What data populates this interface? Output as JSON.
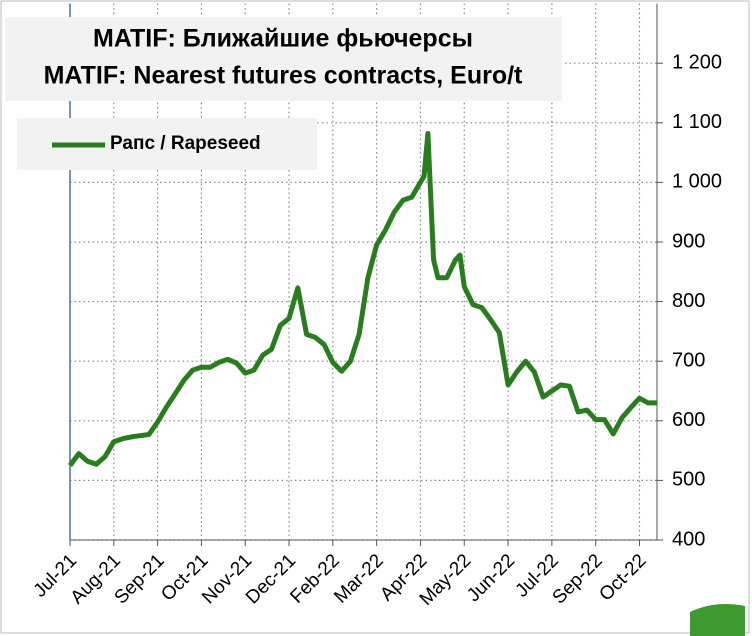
{
  "chart_data": {
    "type": "line",
    "title": [
      "MATIF: Ближайшие фьючерсы",
      "MATIF: Nearest futures contracts, Euro/t"
    ],
    "x": [
      0,
      0.2,
      0.4,
      0.6,
      0.8,
      1.0,
      1.2,
      1.4,
      1.6,
      1.8,
      2.0,
      2.2,
      2.4,
      2.6,
      2.8,
      3.0,
      3.2,
      3.4,
      3.6,
      3.8,
      4.0,
      4.2,
      4.4,
      4.6,
      4.8,
      5.0,
      5.2,
      5.4,
      5.6,
      5.8,
      6.0,
      6.2,
      6.4,
      6.6,
      6.8,
      7.0,
      7.2,
      7.4,
      7.6,
      7.8,
      8.0,
      8.08,
      8.17,
      8.3,
      8.4,
      8.6,
      8.8,
      8.9,
      9.0,
      9.2,
      9.4,
      9.6,
      9.8,
      10.0,
      10.2,
      10.4,
      10.6,
      10.8,
      11.0,
      11.2,
      11.4,
      11.6,
      11.8,
      12.0,
      12.2,
      12.4,
      12.6,
      12.8,
      13.0,
      13.2,
      13.4
    ],
    "series": [
      {
        "name": "Рапс / Rapeseed",
        "color": "#2a7d1f",
        "values": [
          525,
          545,
          532,
          527,
          540,
          565,
          570,
          573,
          575,
          577,
          598,
          623,
          645,
          668,
          685,
          690,
          690,
          698,
          703,
          697,
          680,
          685,
          710,
          720,
          760,
          772,
          823,
          745,
          740,
          728,
          698,
          683,
          700,
          745,
          840,
          895,
          920,
          950,
          970,
          975,
          1000,
          1010,
          1082,
          870,
          840,
          840,
          870,
          878,
          825,
          795,
          790,
          770,
          748,
          660,
          682,
          700,
          682,
          640,
          650,
          660,
          658,
          615,
          618,
          602,
          602,
          578,
          605,
          622,
          638,
          630,
          630
        ]
      }
    ],
    "xlim": [
      0,
      13.4
    ],
    "xticks": [
      {
        "value": 0,
        "label": "Jul-21"
      },
      {
        "value": 1,
        "label": "Aug-21"
      },
      {
        "value": 2,
        "label": "Sep-21"
      },
      {
        "value": 3,
        "label": "Oct-21"
      },
      {
        "value": 4,
        "label": "Nov-21"
      },
      {
        "value": 5,
        "label": "Dec-21"
      },
      {
        "value": 6,
        "label": "Feb-22"
      },
      {
        "value": 7,
        "label": "Mar-22"
      },
      {
        "value": 8,
        "label": "Apr-22"
      },
      {
        "value": 9,
        "label": "May-22"
      },
      {
        "value": 10,
        "label": "Jun-22"
      },
      {
        "value": 11,
        "label": "Jul-22"
      },
      {
        "value": 12,
        "label": "Sep-22"
      },
      {
        "value": 13,
        "label": "Oct-22"
      }
    ],
    "ylim": [
      400,
      1300
    ],
    "yticks": [
      400,
      500,
      600,
      700,
      800,
      900,
      {
        "value": 1000,
        "label": "1 000"
      },
      {
        "value": 1100,
        "label": "1 100"
      },
      {
        "value": 1200,
        "label": "1 200"
      }
    ],
    "grid": true
  }
}
